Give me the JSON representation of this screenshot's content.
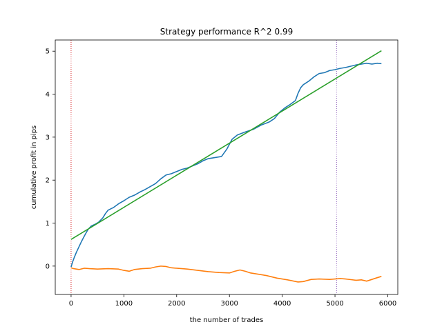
{
  "chart_data": {
    "type": "line",
    "title": "Strategy performance R^2 0.99",
    "xlabel": "the number of trades",
    "ylabel": "cumulative profit in pips",
    "xlim": [
      -300,
      6190
    ],
    "ylim": [
      -0.66,
      5.26
    ],
    "xticks": [
      0,
      1000,
      2000,
      3000,
      4000,
      5000,
      6000
    ],
    "yticks": [
      0,
      1,
      2,
      3,
      4,
      5
    ],
    "grid": false,
    "legend": "none",
    "vlines": [
      {
        "x": 0,
        "color": "#d62728",
        "style": "dotted"
      },
      {
        "x": 5030,
        "color": "#9467bd",
        "style": "dotted"
      }
    ],
    "series": [
      {
        "color": "#1f77b4",
        "points": [
          [
            0,
            -0.02
          ],
          [
            30,
            0.1
          ],
          [
            60,
            0.2
          ],
          [
            100,
            0.32
          ],
          [
            150,
            0.45
          ],
          [
            200,
            0.58
          ],
          [
            260,
            0.72
          ],
          [
            320,
            0.85
          ],
          [
            380,
            0.93
          ],
          [
            450,
            0.97
          ],
          [
            520,
            1.02
          ],
          [
            600,
            1.12
          ],
          [
            650,
            1.22
          ],
          [
            700,
            1.3
          ],
          [
            800,
            1.36
          ],
          [
            900,
            1.45
          ],
          [
            1000,
            1.52
          ],
          [
            1100,
            1.6
          ],
          [
            1200,
            1.65
          ],
          [
            1300,
            1.72
          ],
          [
            1400,
            1.78
          ],
          [
            1500,
            1.85
          ],
          [
            1600,
            1.92
          ],
          [
            1700,
            2.03
          ],
          [
            1800,
            2.12
          ],
          [
            1900,
            2.15
          ],
          [
            2000,
            2.2
          ],
          [
            2100,
            2.25
          ],
          [
            2200,
            2.28
          ],
          [
            2300,
            2.33
          ],
          [
            2400,
            2.38
          ],
          [
            2500,
            2.45
          ],
          [
            2600,
            2.5
          ],
          [
            2700,
            2.52
          ],
          [
            2850,
            2.55
          ],
          [
            2950,
            2.72
          ],
          [
            3050,
            2.95
          ],
          [
            3150,
            3.05
          ],
          [
            3300,
            3.12
          ],
          [
            3450,
            3.18
          ],
          [
            3600,
            3.28
          ],
          [
            3750,
            3.35
          ],
          [
            3850,
            3.43
          ],
          [
            3950,
            3.58
          ],
          [
            4050,
            3.68
          ],
          [
            4150,
            3.76
          ],
          [
            4250,
            3.85
          ],
          [
            4300,
            4.02
          ],
          [
            4350,
            4.15
          ],
          [
            4400,
            4.22
          ],
          [
            4500,
            4.3
          ],
          [
            4600,
            4.4
          ],
          [
            4700,
            4.48
          ],
          [
            4800,
            4.5
          ],
          [
            4900,
            4.55
          ],
          [
            5000,
            4.57
          ],
          [
            5100,
            4.6
          ],
          [
            5200,
            4.62
          ],
          [
            5300,
            4.65
          ],
          [
            5400,
            4.68
          ],
          [
            5500,
            4.7
          ],
          [
            5600,
            4.72
          ],
          [
            5700,
            4.7
          ],
          [
            5800,
            4.72
          ],
          [
            5880,
            4.71
          ]
        ]
      },
      {
        "color": "#ff7f0e",
        "points": [
          [
            0,
            -0.04
          ],
          [
            50,
            -0.06
          ],
          [
            150,
            -0.08
          ],
          [
            250,
            -0.05
          ],
          [
            350,
            -0.06
          ],
          [
            500,
            -0.07
          ],
          [
            700,
            -0.06
          ],
          [
            900,
            -0.07
          ],
          [
            1000,
            -0.1
          ],
          [
            1100,
            -0.12
          ],
          [
            1200,
            -0.08
          ],
          [
            1350,
            -0.06
          ],
          [
            1500,
            -0.05
          ],
          [
            1600,
            -0.02
          ],
          [
            1700,
            0.0
          ],
          [
            1800,
            -0.01
          ],
          [
            1900,
            -0.04
          ],
          [
            2000,
            -0.05
          ],
          [
            2200,
            -0.07
          ],
          [
            2400,
            -0.1
          ],
          [
            2600,
            -0.13
          ],
          [
            2800,
            -0.15
          ],
          [
            3000,
            -0.16
          ],
          [
            3100,
            -0.12
          ],
          [
            3200,
            -0.09
          ],
          [
            3300,
            -0.12
          ],
          [
            3400,
            -0.16
          ],
          [
            3500,
            -0.18
          ],
          [
            3700,
            -0.22
          ],
          [
            3900,
            -0.28
          ],
          [
            4100,
            -0.32
          ],
          [
            4300,
            -0.37
          ],
          [
            4400,
            -0.36
          ],
          [
            4550,
            -0.31
          ],
          [
            4700,
            -0.3
          ],
          [
            4900,
            -0.31
          ],
          [
            5100,
            -0.29
          ],
          [
            5200,
            -0.3
          ],
          [
            5400,
            -0.33
          ],
          [
            5500,
            -0.32
          ],
          [
            5600,
            -0.35
          ],
          [
            5700,
            -0.31
          ],
          [
            5800,
            -0.27
          ],
          [
            5880,
            -0.24
          ]
        ]
      },
      {
        "color": "#2ca02c",
        "points": [
          [
            0,
            0.62
          ],
          [
            5880,
            5.01
          ]
        ]
      }
    ]
  }
}
